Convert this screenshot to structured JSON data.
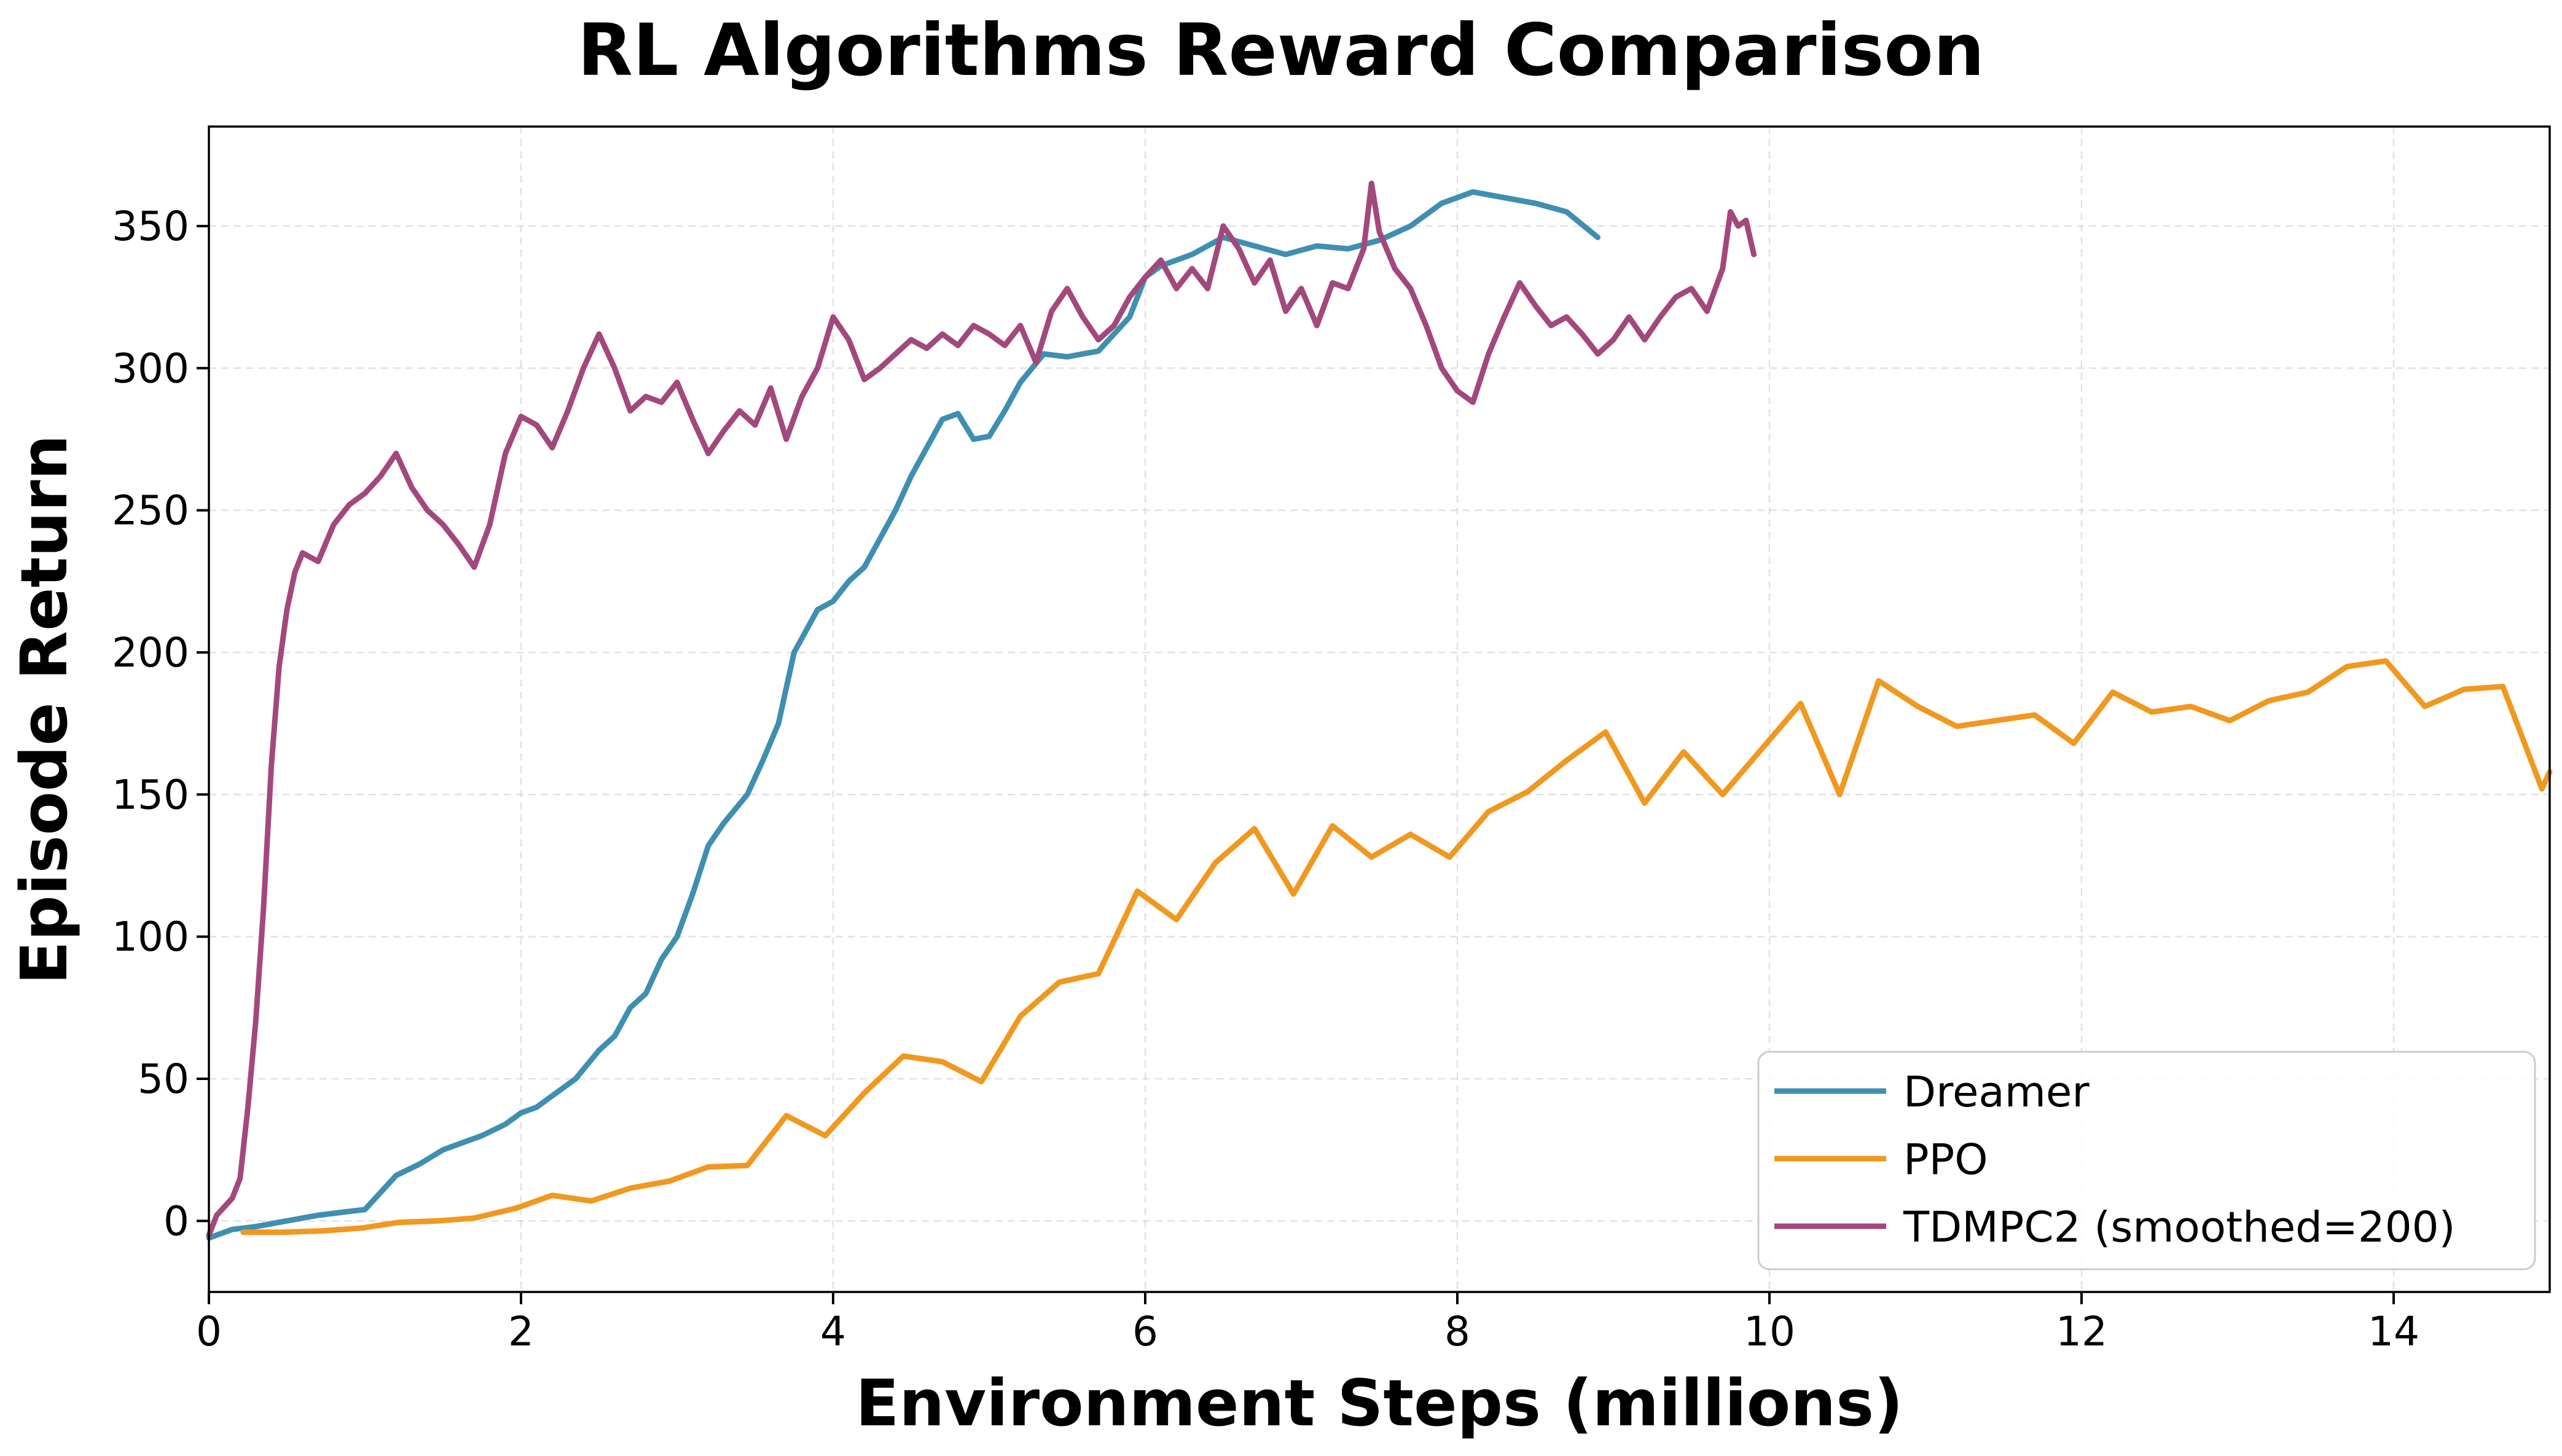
{
  "chart_data": {
    "type": "line",
    "title": "RL Algorithms Reward Comparison",
    "xlabel": "Environment Steps (millions)",
    "ylabel": "Episode Return",
    "xlim": [
      0,
      15
    ],
    "ylim": [
      -25,
      385
    ],
    "xticks": [
      0,
      2,
      4,
      6,
      8,
      10,
      12,
      14
    ],
    "yticks": [
      0,
      50,
      100,
      150,
      200,
      250,
      300,
      350
    ],
    "grid": true,
    "legend_position": "lower-right",
    "series": [
      {
        "name": "Dreamer",
        "color": "#3f8fb0",
        "points": [
          [
            0.0,
            -6
          ],
          [
            0.15,
            -3
          ],
          [
            0.3,
            -2
          ],
          [
            0.5,
            0
          ],
          [
            0.7,
            2
          ],
          [
            0.85,
            3
          ],
          [
            1.0,
            4
          ],
          [
            1.1,
            10
          ],
          [
            1.2,
            16
          ],
          [
            1.35,
            20
          ],
          [
            1.5,
            25
          ],
          [
            1.6,
            27
          ],
          [
            1.75,
            30
          ],
          [
            1.9,
            34
          ],
          [
            2.0,
            38
          ],
          [
            2.1,
            40
          ],
          [
            2.2,
            44
          ],
          [
            2.35,
            50
          ],
          [
            2.5,
            60
          ],
          [
            2.6,
            65
          ],
          [
            2.7,
            75
          ],
          [
            2.8,
            80
          ],
          [
            2.9,
            92
          ],
          [
            3.0,
            100
          ],
          [
            3.1,
            115
          ],
          [
            3.2,
            132
          ],
          [
            3.3,
            140
          ],
          [
            3.45,
            150
          ],
          [
            3.55,
            162
          ],
          [
            3.65,
            175
          ],
          [
            3.75,
            200
          ],
          [
            3.9,
            215
          ],
          [
            4.0,
            218
          ],
          [
            4.1,
            225
          ],
          [
            4.2,
            230
          ],
          [
            4.3,
            240
          ],
          [
            4.4,
            250
          ],
          [
            4.5,
            262
          ],
          [
            4.6,
            272
          ],
          [
            4.7,
            282
          ],
          [
            4.8,
            284
          ],
          [
            4.9,
            275
          ],
          [
            5.0,
            276
          ],
          [
            5.1,
            285
          ],
          [
            5.2,
            295
          ],
          [
            5.35,
            305
          ],
          [
            5.5,
            304
          ],
          [
            5.7,
            306
          ],
          [
            5.9,
            318
          ],
          [
            6.0,
            332
          ],
          [
            6.1,
            336
          ],
          [
            6.3,
            340
          ],
          [
            6.5,
            346
          ],
          [
            6.7,
            343
          ],
          [
            6.9,
            340
          ],
          [
            7.1,
            343
          ],
          [
            7.3,
            342
          ],
          [
            7.5,
            345
          ],
          [
            7.7,
            350
          ],
          [
            7.9,
            358
          ],
          [
            8.1,
            362
          ],
          [
            8.3,
            360
          ],
          [
            8.5,
            358
          ],
          [
            8.7,
            355
          ],
          [
            8.9,
            346
          ]
        ]
      },
      {
        "name": "PPO",
        "color": "#f0981f",
        "points": [
          [
            0.22,
            -4
          ],
          [
            0.48,
            -4
          ],
          [
            0.73,
            -3.5
          ],
          [
            0.98,
            -2.5
          ],
          [
            1.22,
            -0.5
          ],
          [
            1.47,
            0
          ],
          [
            1.7,
            1
          ],
          [
            1.97,
            4.5
          ],
          [
            2.2,
            9
          ],
          [
            2.45,
            7
          ],
          [
            2.7,
            11.5
          ],
          [
            2.95,
            14
          ],
          [
            3.2,
            19
          ],
          [
            3.45,
            19.5
          ],
          [
            3.7,
            37
          ],
          [
            3.95,
            30
          ],
          [
            4.2,
            45
          ],
          [
            4.45,
            58
          ],
          [
            4.7,
            56
          ],
          [
            4.95,
            49
          ],
          [
            5.2,
            72
          ],
          [
            5.45,
            84
          ],
          [
            5.7,
            87
          ],
          [
            5.95,
            116
          ],
          [
            6.2,
            106
          ],
          [
            6.45,
            126
          ],
          [
            6.7,
            138
          ],
          [
            6.95,
            115
          ],
          [
            7.2,
            139
          ],
          [
            7.45,
            128
          ],
          [
            7.7,
            136
          ],
          [
            7.95,
            128
          ],
          [
            8.2,
            144
          ],
          [
            8.45,
            151
          ],
          [
            8.7,
            162
          ],
          [
            8.95,
            172
          ],
          [
            9.2,
            147
          ],
          [
            9.45,
            165
          ],
          [
            9.7,
            150
          ],
          [
            9.95,
            166
          ],
          [
            10.2,
            182
          ],
          [
            10.45,
            150
          ],
          [
            10.7,
            190
          ],
          [
            10.95,
            181
          ],
          [
            11.2,
            174
          ],
          [
            11.45,
            176
          ],
          [
            11.7,
            178
          ],
          [
            11.95,
            168
          ],
          [
            12.2,
            186
          ],
          [
            12.45,
            179
          ],
          [
            12.7,
            181
          ],
          [
            12.95,
            176
          ],
          [
            13.2,
            183
          ],
          [
            13.45,
            186
          ],
          [
            13.7,
            195
          ],
          [
            13.95,
            197
          ],
          [
            14.2,
            181
          ],
          [
            14.45,
            187
          ],
          [
            14.7,
            188
          ],
          [
            14.95,
            152
          ],
          [
            15.0,
            158
          ]
        ]
      },
      {
        "name": "TDMPC2 (smoothed=200)",
        "color": "#a3487c",
        "points": [
          [
            0.0,
            -5
          ],
          [
            0.05,
            2
          ],
          [
            0.1,
            5
          ],
          [
            0.15,
            8
          ],
          [
            0.2,
            15
          ],
          [
            0.25,
            40
          ],
          [
            0.3,
            70
          ],
          [
            0.35,
            110
          ],
          [
            0.4,
            160
          ],
          [
            0.45,
            195
          ],
          [
            0.5,
            215
          ],
          [
            0.55,
            228
          ],
          [
            0.6,
            235
          ],
          [
            0.7,
            232
          ],
          [
            0.8,
            245
          ],
          [
            0.9,
            252
          ],
          [
            1.0,
            256
          ],
          [
            1.1,
            262
          ],
          [
            1.2,
            270
          ],
          [
            1.3,
            258
          ],
          [
            1.4,
            250
          ],
          [
            1.5,
            245
          ],
          [
            1.6,
            238
          ],
          [
            1.7,
            230
          ],
          [
            1.8,
            245
          ],
          [
            1.9,
            270
          ],
          [
            2.0,
            283
          ],
          [
            2.1,
            280
          ],
          [
            2.2,
            272
          ],
          [
            2.3,
            285
          ],
          [
            2.4,
            300
          ],
          [
            2.5,
            312
          ],
          [
            2.6,
            300
          ],
          [
            2.7,
            285
          ],
          [
            2.8,
            290
          ],
          [
            2.9,
            288
          ],
          [
            3.0,
            295
          ],
          [
            3.1,
            282
          ],
          [
            3.2,
            270
          ],
          [
            3.3,
            278
          ],
          [
            3.4,
            285
          ],
          [
            3.5,
            280
          ],
          [
            3.6,
            293
          ],
          [
            3.7,
            275
          ],
          [
            3.8,
            290
          ],
          [
            3.9,
            300
          ],
          [
            4.0,
            318
          ],
          [
            4.1,
            310
          ],
          [
            4.2,
            296
          ],
          [
            4.3,
            300
          ],
          [
            4.4,
            305
          ],
          [
            4.5,
            310
          ],
          [
            4.6,
            307
          ],
          [
            4.7,
            312
          ],
          [
            4.8,
            308
          ],
          [
            4.9,
            315
          ],
          [
            5.0,
            312
          ],
          [
            5.1,
            308
          ],
          [
            5.2,
            315
          ],
          [
            5.3,
            302
          ],
          [
            5.4,
            320
          ],
          [
            5.5,
            328
          ],
          [
            5.6,
            318
          ],
          [
            5.7,
            310
          ],
          [
            5.8,
            315
          ],
          [
            5.9,
            325
          ],
          [
            6.0,
            332
          ],
          [
            6.1,
            338
          ],
          [
            6.2,
            328
          ],
          [
            6.3,
            335
          ],
          [
            6.4,
            328
          ],
          [
            6.5,
            350
          ],
          [
            6.6,
            342
          ],
          [
            6.7,
            330
          ],
          [
            6.8,
            338
          ],
          [
            6.9,
            320
          ],
          [
            7.0,
            328
          ],
          [
            7.1,
            315
          ],
          [
            7.2,
            330
          ],
          [
            7.3,
            328
          ],
          [
            7.4,
            342
          ],
          [
            7.45,
            365
          ],
          [
            7.5,
            348
          ],
          [
            7.6,
            335
          ],
          [
            7.7,
            328
          ],
          [
            7.8,
            315
          ],
          [
            7.9,
            300
          ],
          [
            8.0,
            292
          ],
          [
            8.1,
            288
          ],
          [
            8.2,
            305
          ],
          [
            8.3,
            318
          ],
          [
            8.4,
            330
          ],
          [
            8.5,
            322
          ],
          [
            8.6,
            315
          ],
          [
            8.7,
            318
          ],
          [
            8.8,
            312
          ],
          [
            8.9,
            305
          ],
          [
            9.0,
            310
          ],
          [
            9.1,
            318
          ],
          [
            9.2,
            310
          ],
          [
            9.3,
            318
          ],
          [
            9.4,
            325
          ],
          [
            9.5,
            328
          ],
          [
            9.6,
            320
          ],
          [
            9.7,
            335
          ],
          [
            9.75,
            355
          ],
          [
            9.8,
            350
          ],
          [
            9.85,
            352
          ],
          [
            9.9,
            340
          ]
        ]
      }
    ]
  }
}
